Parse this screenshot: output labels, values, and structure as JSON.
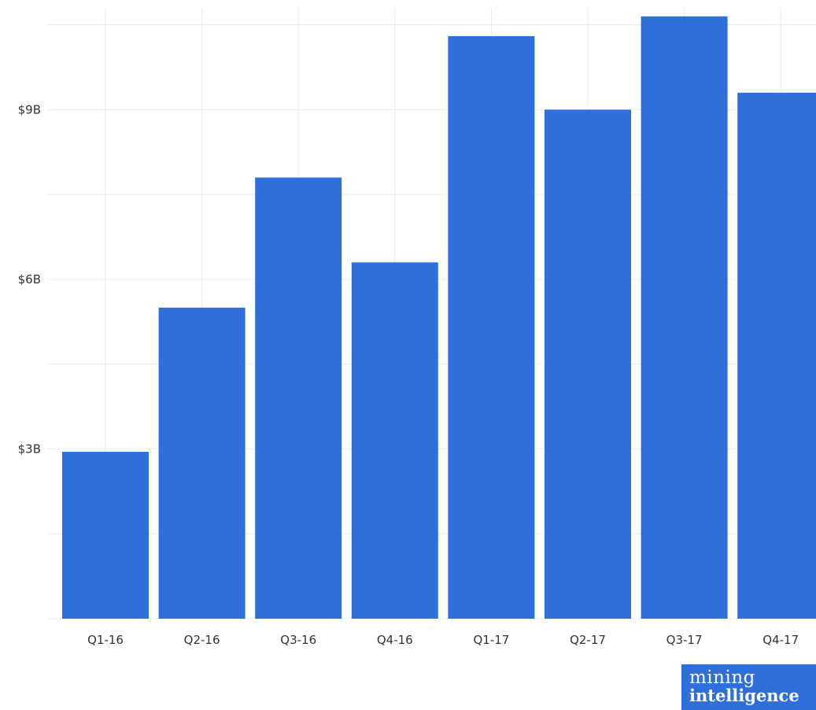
{
  "chart_data": {
    "type": "bar",
    "title": "",
    "xlabel": "",
    "ylabel": "",
    "categories": [
      "Q1-16",
      "Q2-16",
      "Q3-16",
      "Q4-16",
      "Q1-17",
      "Q2-17",
      "Q3-17",
      "Q4-17"
    ],
    "values": [
      2.95,
      5.5,
      7.8,
      6.3,
      10.3,
      9.0,
      10.65,
      9.3
    ],
    "ylim": [
      0,
      10.8
    ],
    "y_ticks": [
      3,
      6,
      9
    ],
    "y_tick_labels": [
      "$3B",
      "$6B",
      "$9B"
    ],
    "y_minor_gridlines": [
      1.5,
      4.5,
      7.5,
      10.5
    ],
    "grid": true,
    "bar_color": "#2e6fd9",
    "grid_color": "#ececec"
  },
  "branding": {
    "logo_line1": "mining",
    "logo_line2": "intelligence",
    "logo_color": "#2e6fd9"
  }
}
